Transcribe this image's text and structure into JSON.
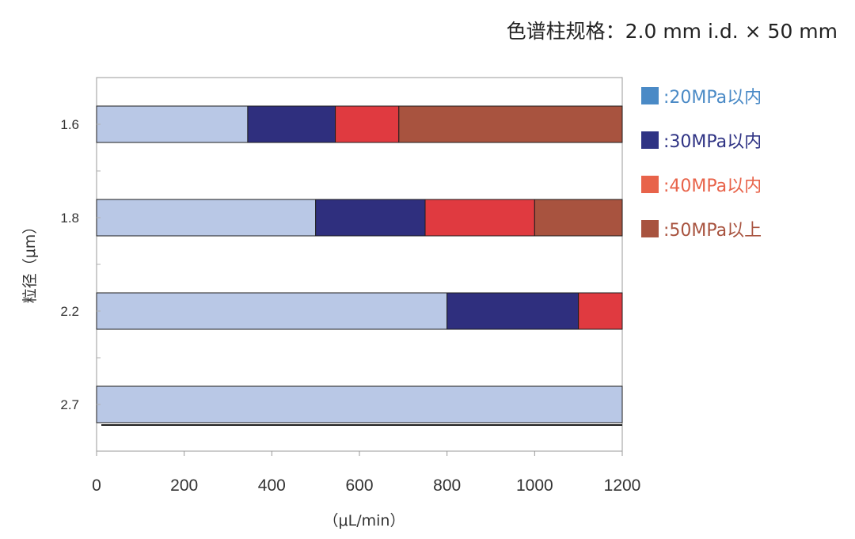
{
  "spec_title": "色谱柱规格：2.0 mm i.d. × 50 mm",
  "chart_data": {
    "type": "bar",
    "orientation": "horizontal",
    "stacked": true,
    "title": "",
    "xlabel": "（μL/min）",
    "ylabel": "粒径（μm）",
    "xlim": [
      0,
      1200
    ],
    "xticks": [
      "0",
      "200",
      "400",
      "600",
      "800",
      "1000",
      "1200"
    ],
    "xtick_values": [
      0,
      200,
      400,
      600,
      800,
      1000,
      1200
    ],
    "categories": [
      "1.6",
      "1.8",
      "2.2",
      "2.7"
    ],
    "series": [
      {
        "name": ":20MPa以内",
        "color": "#b9c8e6",
        "legend_color": "#4a8ac6",
        "text_color": "#4a8ac6",
        "values": [
          345,
          500,
          800,
          1200
        ]
      },
      {
        "name": ":30MPa以内",
        "color": "#2f2f7e",
        "legend_color": "#2f3384",
        "text_color": "#2f3384",
        "values": [
          200,
          250,
          300,
          0
        ]
      },
      {
        "name": ":40MPa以内",
        "color": "#e03a40",
        "legend_color": "#e8634a",
        "text_color": "#e8634a",
        "values": [
          145,
          250,
          100,
          0
        ]
      },
      {
        "name": ":50MPa以上",
        "color": "#a8533f",
        "legend_color": "#a8533f",
        "text_color": "#a8533f",
        "values": [
          510,
          200,
          0,
          0
        ]
      }
    ],
    "grid": false,
    "legend_position": "right"
  }
}
